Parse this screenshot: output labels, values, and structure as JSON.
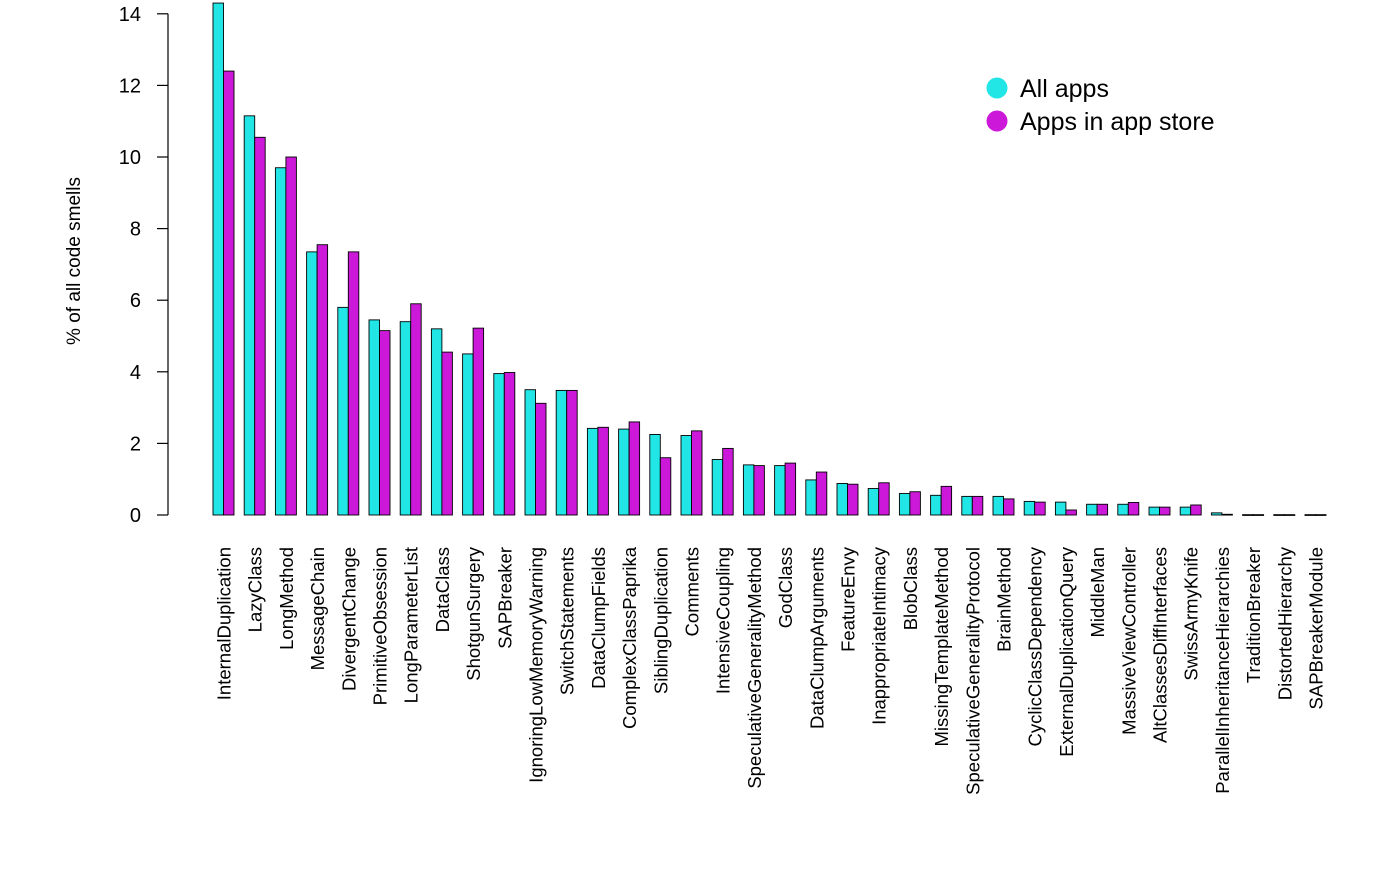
{
  "chart_data": {
    "type": "bar",
    "title": "",
    "xlabel": "",
    "ylabel": "% of all code smells",
    "ylim": [
      0,
      14
    ],
    "yticks": [
      0,
      2,
      4,
      6,
      8,
      10,
      12,
      14
    ],
    "grid": false,
    "legend_position": "top-right",
    "categories": [
      "InternalDuplication",
      "LazyClass",
      "LongMethod",
      "MessageChain",
      "DivergentChange",
      "PrimitiveObsession",
      "LongParameterList",
      "DataClass",
      "ShotgunSurgery",
      "SAPBreaker",
      "IgnoringLowMemoryWarning",
      "SwitchStatements",
      "DataClumpFields",
      "ComplexClassPaprika",
      "SiblingDuplication",
      "Comments",
      "IntensiveCoupling",
      "SpeculativeGeneralityMethod",
      "GodClass",
      "DataClumpArguments",
      "FeatureEnvy",
      "InappropriateIntimacy",
      "BlobClass",
      "MissingTemplateMethod",
      "SpeculativeGeneralityProtocol",
      "BrainMethod",
      "CyclicClassDependency",
      "ExternalDuplicationQuery",
      "MiddleMan",
      "MassiveViewController",
      "AltClassesDiffInterfaces",
      "SwissArmyKnife",
      "ParallelInheritanceHierarchies",
      "TraditionBreaker",
      "DistortedHierarchy",
      "SAPBreakerModule"
    ],
    "series": [
      {
        "name": "All apps",
        "color": "#22e5e5",
        "values": [
          14.3,
          11.15,
          9.7,
          7.35,
          5.8,
          5.45,
          5.4,
          5.2,
          4.5,
          3.95,
          3.5,
          3.48,
          2.42,
          2.4,
          2.25,
          2.22,
          1.55,
          1.4,
          1.38,
          0.98,
          0.88,
          0.74,
          0.6,
          0.55,
          0.52,
          0.52,
          0.38,
          0.36,
          0.3,
          0.3,
          0.22,
          0.22,
          0.06,
          0.01,
          0.01,
          0.01
        ]
      },
      {
        "name": "Apps in app store",
        "color": "#cc18d8",
        "values": [
          12.4,
          10.55,
          10.0,
          7.55,
          7.35,
          5.15,
          5.9,
          4.55,
          5.22,
          3.98,
          3.12,
          3.48,
          2.45,
          2.6,
          1.6,
          2.35,
          1.86,
          1.38,
          1.45,
          1.2,
          0.86,
          0.9,
          0.65,
          0.8,
          0.52,
          0.45,
          0.36,
          0.14,
          0.3,
          0.35,
          0.22,
          0.28,
          0.02,
          0.01,
          0.01,
          0.01
        ]
      }
    ]
  }
}
